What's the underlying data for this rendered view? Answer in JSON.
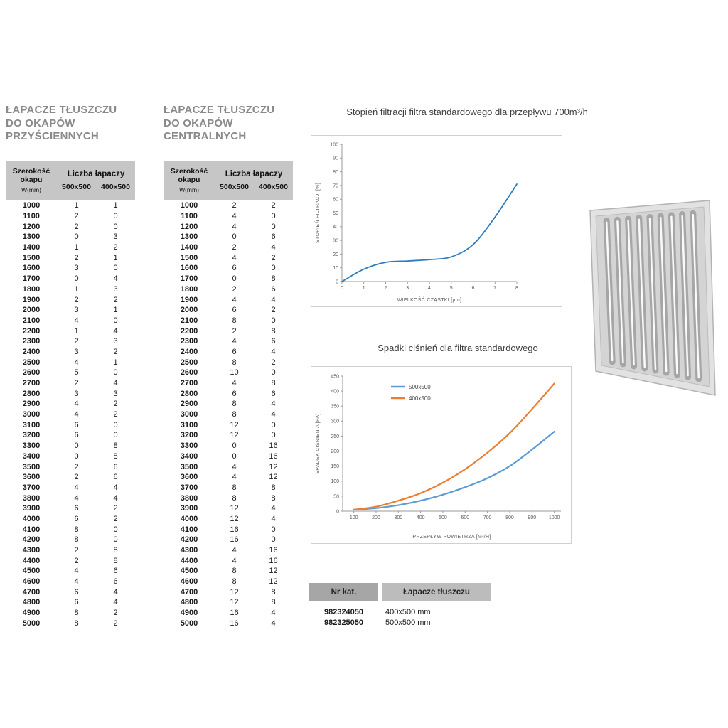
{
  "page": {
    "background": "#ffffff",
    "accent_blue": "#5b9bd5",
    "accent_orange": "#ed7d31",
    "header_gray": "#c6c6c6",
    "title_gray": "#8a8a8a"
  },
  "tables": [
    {
      "title_lines": [
        "ŁAPACZE TŁUSZCZU",
        "DO OKAPÓW",
        "PRZYŚCIENNYCH"
      ],
      "header": {
        "width_line1": "Szerokość",
        "width_line2": "okapu",
        "width_unit": "W(mm)",
        "group_label": "Liczba łapaczy",
        "col_a": "500x500",
        "col_b": "400x500"
      },
      "rows": [
        [
          1000,
          1,
          1
        ],
        [
          1100,
          2,
          0
        ],
        [
          1200,
          2,
          0
        ],
        [
          1300,
          0,
          3
        ],
        [
          1400,
          1,
          2
        ],
        [
          1500,
          2,
          1
        ],
        [
          1600,
          3,
          0
        ],
        [
          1700,
          0,
          4
        ],
        [
          1800,
          1,
          3
        ],
        [
          1900,
          2,
          2
        ],
        [
          2000,
          3,
          1
        ],
        [
          2100,
          4,
          0
        ],
        [
          2200,
          1,
          4
        ],
        [
          2300,
          2,
          3
        ],
        [
          2400,
          3,
          2
        ],
        [
          2500,
          4,
          1
        ],
        [
          2600,
          5,
          0
        ],
        [
          2700,
          2,
          4
        ],
        [
          2800,
          3,
          3
        ],
        [
          2900,
          4,
          2
        ],
        [
          3000,
          4,
          2
        ],
        [
          3100,
          6,
          0
        ],
        [
          3200,
          6,
          0
        ],
        [
          3300,
          0,
          8
        ],
        [
          3400,
          0,
          8
        ],
        [
          3500,
          2,
          6
        ],
        [
          3600,
          2,
          6
        ],
        [
          3700,
          4,
          4
        ],
        [
          3800,
          4,
          4
        ],
        [
          3900,
          6,
          2
        ],
        [
          4000,
          6,
          2
        ],
        [
          4100,
          8,
          0
        ],
        [
          4200,
          8,
          0
        ],
        [
          4300,
          2,
          8
        ],
        [
          4400,
          2,
          8
        ],
        [
          4500,
          4,
          6
        ],
        [
          4600,
          4,
          6
        ],
        [
          4700,
          6,
          4
        ],
        [
          4800,
          6,
          4
        ],
        [
          4900,
          8,
          2
        ],
        [
          5000,
          8,
          2
        ]
      ]
    },
    {
      "title_lines": [
        "ŁAPACZE TŁUSZCZU",
        "DO OKAPÓW",
        "CENTRALNYCH"
      ],
      "header": {
        "width_line1": "Szerokość",
        "width_line2": "okapu",
        "width_unit": "W(mm)",
        "group_label": "Liczba łapaczy",
        "col_a": "500x500",
        "col_b": "400x500"
      },
      "rows": [
        [
          1000,
          2,
          2
        ],
        [
          1100,
          4,
          0
        ],
        [
          1200,
          4,
          0
        ],
        [
          1300,
          0,
          6
        ],
        [
          1400,
          2,
          4
        ],
        [
          1500,
          4,
          2
        ],
        [
          1600,
          6,
          0
        ],
        [
          1700,
          0,
          8
        ],
        [
          1800,
          2,
          6
        ],
        [
          1900,
          4,
          4
        ],
        [
          2000,
          6,
          2
        ],
        [
          2100,
          8,
          0
        ],
        [
          2200,
          2,
          8
        ],
        [
          2300,
          4,
          6
        ],
        [
          2400,
          6,
          4
        ],
        [
          2500,
          8,
          2
        ],
        [
          2600,
          10,
          0
        ],
        [
          2700,
          4,
          8
        ],
        [
          2800,
          6,
          6
        ],
        [
          2900,
          8,
          4
        ],
        [
          3000,
          8,
          4
        ],
        [
          3100,
          12,
          0
        ],
        [
          3200,
          12,
          0
        ],
        [
          3300,
          0,
          16
        ],
        [
          3400,
          0,
          16
        ],
        [
          3500,
          4,
          12
        ],
        [
          3600,
          4,
          12
        ],
        [
          3700,
          8,
          8
        ],
        [
          3800,
          8,
          8
        ],
        [
          3900,
          12,
          4
        ],
        [
          4000,
          12,
          4
        ],
        [
          4100,
          16,
          0
        ],
        [
          4200,
          16,
          0
        ],
        [
          4300,
          4,
          16
        ],
        [
          4400,
          4,
          16
        ],
        [
          4500,
          8,
          12
        ],
        [
          4600,
          8,
          12
        ],
        [
          4700,
          12,
          8
        ],
        [
          4800,
          12,
          8
        ],
        [
          4900,
          16,
          4
        ],
        [
          5000,
          16,
          4
        ]
      ]
    }
  ],
  "chart_data": [
    {
      "type": "line",
      "title": "Stopień filtracji filtra standardowego dla przepływu 700m³/h",
      "xlabel": "WIELKOŚĆ CZĄSTKI [μm]",
      "ylabel": "STOPIEŃ FILTRACJI [%]",
      "x": [
        0,
        1,
        2,
        3,
        4,
        5,
        6,
        7,
        8
      ],
      "xticks": [
        0,
        1,
        2,
        3,
        4,
        5,
        6,
        7,
        8
      ],
      "yticks": [
        0,
        10,
        20,
        30,
        40,
        50,
        60,
        70,
        80,
        90,
        100
      ],
      "xlim": [
        0,
        8
      ],
      "ylim": [
        0,
        100
      ],
      "grid": false,
      "legend": false,
      "series": [
        {
          "name": "stopień filtracji",
          "color": "#2e7bbd",
          "values": [
            0,
            9,
            14,
            15,
            16,
            18,
            27,
            47,
            71
          ]
        }
      ]
    },
    {
      "type": "line",
      "title": "Spadki ciśnień dla filtra standardowego",
      "xlabel": "PRZEPŁYW POWIETRZA [M³/H]",
      "ylabel": "SPADEK CIŚNIENIA [PA]",
      "x": [
        100,
        200,
        300,
        400,
        500,
        600,
        700,
        800,
        900,
        1000
      ],
      "xticks": [
        100,
        200,
        300,
        400,
        500,
        600,
        700,
        800,
        900,
        1000
      ],
      "yticks": [
        0,
        50,
        100,
        150,
        200,
        250,
        300,
        350,
        400,
        450
      ],
      "xlim": [
        50,
        1030
      ],
      "ylim": [
        0,
        450
      ],
      "grid": false,
      "legend": true,
      "legend_position": "top-center",
      "series": [
        {
          "name": "500x500",
          "color": "#5b9bd5",
          "values": [
            5,
            10,
            20,
            35,
            55,
            80,
            110,
            150,
            205,
            265
          ]
        },
        {
          "name": "400x500",
          "color": "#ed7d31",
          "values": [
            5,
            15,
            35,
            60,
            95,
            140,
            195,
            260,
            340,
            425
          ]
        }
      ]
    }
  ],
  "catalog": {
    "headers": [
      "Nr kat.",
      "Łapacze tłuszczu"
    ],
    "rows": [
      [
        "982324050",
        "400x500 mm"
      ],
      [
        "982325050",
        "500x500 mm"
      ]
    ]
  },
  "filter_image": {
    "name": "baffle-grease-filter",
    "frame_color": "#e2e2e2",
    "face_color": "#d4d4d4",
    "slot_color": "#a6a6a6",
    "highlight_color": "#fafafa"
  }
}
